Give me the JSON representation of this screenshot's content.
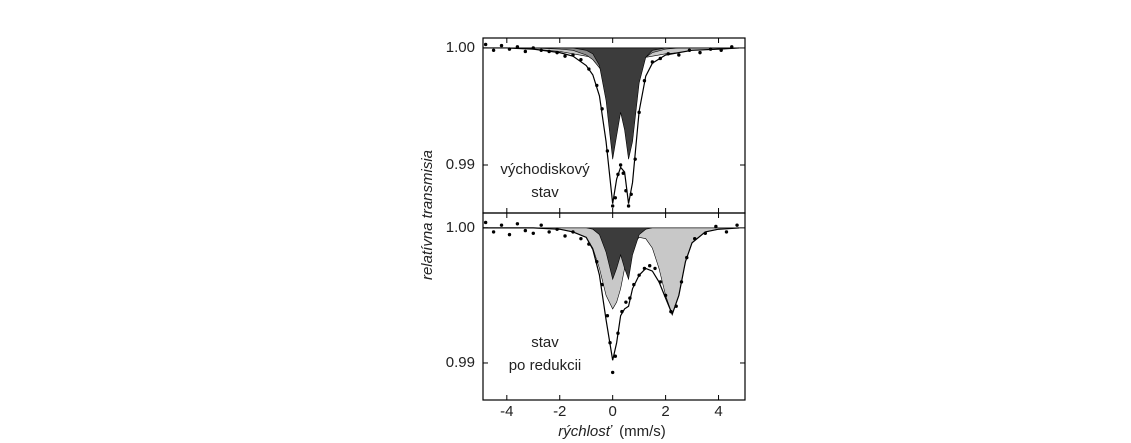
{
  "chart_data": [
    {
      "type": "line",
      "ylabel": "relatívna transmisia",
      "annotation": [
        "východiskový",
        "stav"
      ],
      "xlim": [
        -4.9,
        5
      ],
      "ylim": [
        0.9859,
        1.00085
      ],
      "yticks": [
        {
          "value": 1,
          "label": "1.00"
        },
        {
          "value": 0.99,
          "label": "0.99"
        }
      ],
      "x": [
        -5,
        -4,
        -3,
        -2,
        -1.5,
        -1,
        -0.75,
        -0.5,
        -0.25,
        0,
        0.15,
        0.3,
        0.45,
        0.6,
        0.75,
        1,
        1.25,
        1.5,
        2,
        2.5,
        3,
        4,
        4.8
      ],
      "series": [
        {
          "type": "area",
          "color": "#c8c8c8",
          "values": [
            1.0,
            1.0,
            0.9999,
            0.9997,
            0.9995,
            0.9993,
            0.9992,
            0.9991,
            0.999,
            0.999,
            0.9989,
            0.9989,
            0.9989,
            0.999,
            0.999,
            0.9991,
            0.9992,
            0.9993,
            0.9995,
            0.9996,
            0.9998,
            0.9999,
            1.0
          ]
        },
        {
          "type": "area",
          "color": "#8c8c8c",
          "values": [
            1.0,
            1.0,
            1.0,
            0.9999,
            0.9998,
            0.9994,
            0.999,
            0.9983,
            0.9975,
            0.9972,
            0.9974,
            0.9977,
            0.9975,
            0.9972,
            0.9975,
            0.9985,
            0.9992,
            0.9996,
            0.9999,
            1.0,
            1.0,
            1.0,
            1.0
          ]
        },
        {
          "type": "area",
          "color": "#3c3c3c",
          "values": [
            1.0,
            1.0,
            1.0,
            1.0,
            1.0,
            0.9998,
            0.9995,
            0.9985,
            0.9955,
            0.9905,
            0.9925,
            0.9945,
            0.993,
            0.9905,
            0.992,
            0.997,
            0.9992,
            0.9998,
            1.0,
            1.0,
            1.0,
            1.0,
            1.0
          ]
        },
        {
          "type": "line",
          "color": "#000000",
          "values": [
            1.0,
            1.0,
            0.9999,
            0.9996,
            0.9993,
            0.9985,
            0.9977,
            0.9959,
            0.992,
            0.9867,
            0.9888,
            0.9898,
            0.9894,
            0.9867,
            0.9885,
            0.9946,
            0.9976,
            0.9987,
            0.9994,
            0.9996,
            0.9998,
            0.9999,
            1.0
          ]
        },
        {
          "type": "scatter",
          "color": "#000000",
          "x": [
            -4.8,
            -4.5,
            -4.2,
            -3.9,
            -3.6,
            -3.3,
            -3,
            -2.7,
            -2.4,
            -2.1,
            -1.8,
            -1.5,
            -1.2,
            -0.9,
            -0.6,
            -0.4,
            -0.2,
            0,
            0.1,
            0.2,
            0.3,
            0.4,
            0.5,
            0.6,
            0.7,
            0.85,
            1,
            1.2,
            1.5,
            1.8,
            2.1,
            2.5,
            2.9,
            3.3,
            3.7,
            4.1,
            4.5
          ],
          "values": [
            1.0003,
            0.9998,
            1.0002,
            0.9999,
            1.0001,
            0.9997,
            1.0,
            0.9998,
            0.9997,
            0.9996,
            0.9993,
            0.9994,
            0.999,
            0.9982,
            0.9968,
            0.9948,
            0.9912,
            0.9865,
            0.9872,
            0.9892,
            0.99,
            0.9893,
            0.9878,
            0.9865,
            0.9875,
            0.9905,
            0.9945,
            0.9972,
            0.9988,
            0.9991,
            0.9995,
            0.9994,
            0.9998,
            0.9996,
            0.9999,
            0.9998,
            1.0001
          ]
        }
      ]
    },
    {
      "type": "line",
      "annotation": [
        "stav",
        "po redukcii"
      ],
      "xlabel": "rýchlosť",
      "xlabel_unit": "(mm/s)",
      "xlim": [
        -4.9,
        5
      ],
      "ylim": [
        0.98726,
        1.0011
      ],
      "xticks": [
        -4,
        -2,
        0,
        2,
        4
      ],
      "yticks": [
        {
          "value": 1,
          "label": "1.00"
        },
        {
          "value": 0.99,
          "label": "0.99"
        }
      ],
      "x": [
        -5,
        -4,
        -3,
        -2,
        -1.5,
        -1,
        -0.75,
        -0.5,
        -0.25,
        0,
        0.15,
        0.3,
        0.45,
        0.6,
        0.75,
        1,
        1.25,
        1.5,
        1.75,
        2,
        2.25,
        2.5,
        2.75,
        3,
        3.5,
        4,
        4.8
      ],
      "series": [
        {
          "type": "area",
          "color": "#c8c8c8",
          "values": [
            1.0,
            1.0,
            1.0,
            0.9999,
            0.9997,
            0.9993,
            0.9985,
            0.997,
            0.995,
            0.994,
            0.9945,
            0.9955,
            0.997,
            0.998,
            0.9987,
            0.9993,
            0.9992,
            0.9985,
            0.997,
            0.995,
            0.9936,
            0.995,
            0.9975,
            0.9989,
            0.9997,
            0.9999,
            1.0
          ]
        },
        {
          "type": "area",
          "color": "#3c3c3c",
          "values": [
            1.0,
            1.0,
            1.0,
            1.0,
            1.0,
            1.0,
            0.9999,
            0.9995,
            0.9982,
            0.9962,
            0.997,
            0.998,
            0.997,
            0.9962,
            0.998,
            0.9995,
            0.9999,
            1.0,
            1.0,
            1.0,
            1.0,
            1.0,
            1.0,
            1.0,
            1.0,
            1.0,
            1.0
          ]
        },
        {
          "type": "line",
          "color": "#000000",
          "values": [
            1.0,
            1.0,
            1.0,
            0.9999,
            0.9997,
            0.9993,
            0.9984,
            0.9965,
            0.9932,
            0.9902,
            0.9915,
            0.9935,
            0.994,
            0.9942,
            0.9955,
            0.9965,
            0.997,
            0.9968,
            0.996,
            0.9948,
            0.9936,
            0.995,
            0.9975,
            0.9989,
            0.9997,
            0.9999,
            1.0
          ]
        },
        {
          "type": "scatter",
          "color": "#000000",
          "x": [
            -4.8,
            -4.5,
            -4.2,
            -3.9,
            -3.6,
            -3.3,
            -3,
            -2.7,
            -2.4,
            -2.1,
            -1.8,
            -1.5,
            -1.2,
            -0.9,
            -0.6,
            -0.4,
            -0.2,
            -0.1,
            0,
            0.1,
            0.2,
            0.35,
            0.5,
            0.65,
            0.8,
            1,
            1.2,
            1.4,
            1.6,
            1.8,
            2,
            2.2,
            2.4,
            2.6,
            2.8,
            3.1,
            3.5,
            3.9,
            4.3,
            4.7
          ],
          "values": [
            1.0004,
            0.9997,
            1.0002,
            0.9995,
            1.0003,
            0.9998,
            0.9996,
            1.0002,
            0.9997,
            0.9999,
            0.9994,
            0.9997,
            0.9992,
            0.9988,
            0.9975,
            0.9958,
            0.9935,
            0.9915,
            0.9893,
            0.9905,
            0.9922,
            0.9938,
            0.9945,
            0.9948,
            0.9958,
            0.9965,
            0.997,
            0.9972,
            0.997,
            0.996,
            0.995,
            0.9938,
            0.9942,
            0.996,
            0.9978,
            0.9992,
            0.9996,
            1.0001,
            0.9997,
            1.0002
          ]
        }
      ]
    }
  ]
}
